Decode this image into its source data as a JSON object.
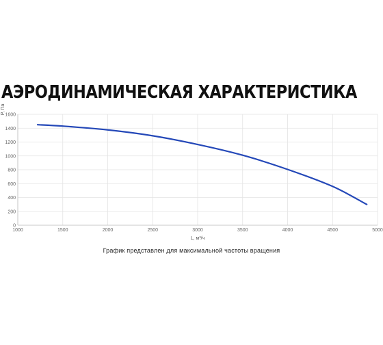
{
  "page": {
    "title": "АЭРОДИНАМИЧЕСКАЯ ХАРАКТЕРИСТИКА",
    "caption": "График представлен для максимальной частоты вращения"
  },
  "chart_data": {
    "type": "line",
    "xlabel": "L, м³/ч",
    "ylabel": "P, Па",
    "xlim": [
      1000,
      5000
    ],
    "ylim": [
      0,
      1600
    ],
    "xticks": [
      1000,
      1500,
      2000,
      2500,
      3000,
      3500,
      4000,
      4500,
      5000
    ],
    "yticks": [
      0,
      200,
      400,
      600,
      800,
      1000,
      1200,
      1400,
      1600
    ],
    "grid": true,
    "line_color": "#2448b8",
    "series": [
      {
        "x": [
          1220,
          1500,
          2000,
          2500,
          3000,
          3500,
          4000,
          4500,
          4880
        ],
        "y": [
          1450,
          1430,
          1375,
          1290,
          1165,
          1010,
          805,
          560,
          300
        ]
      }
    ]
  }
}
